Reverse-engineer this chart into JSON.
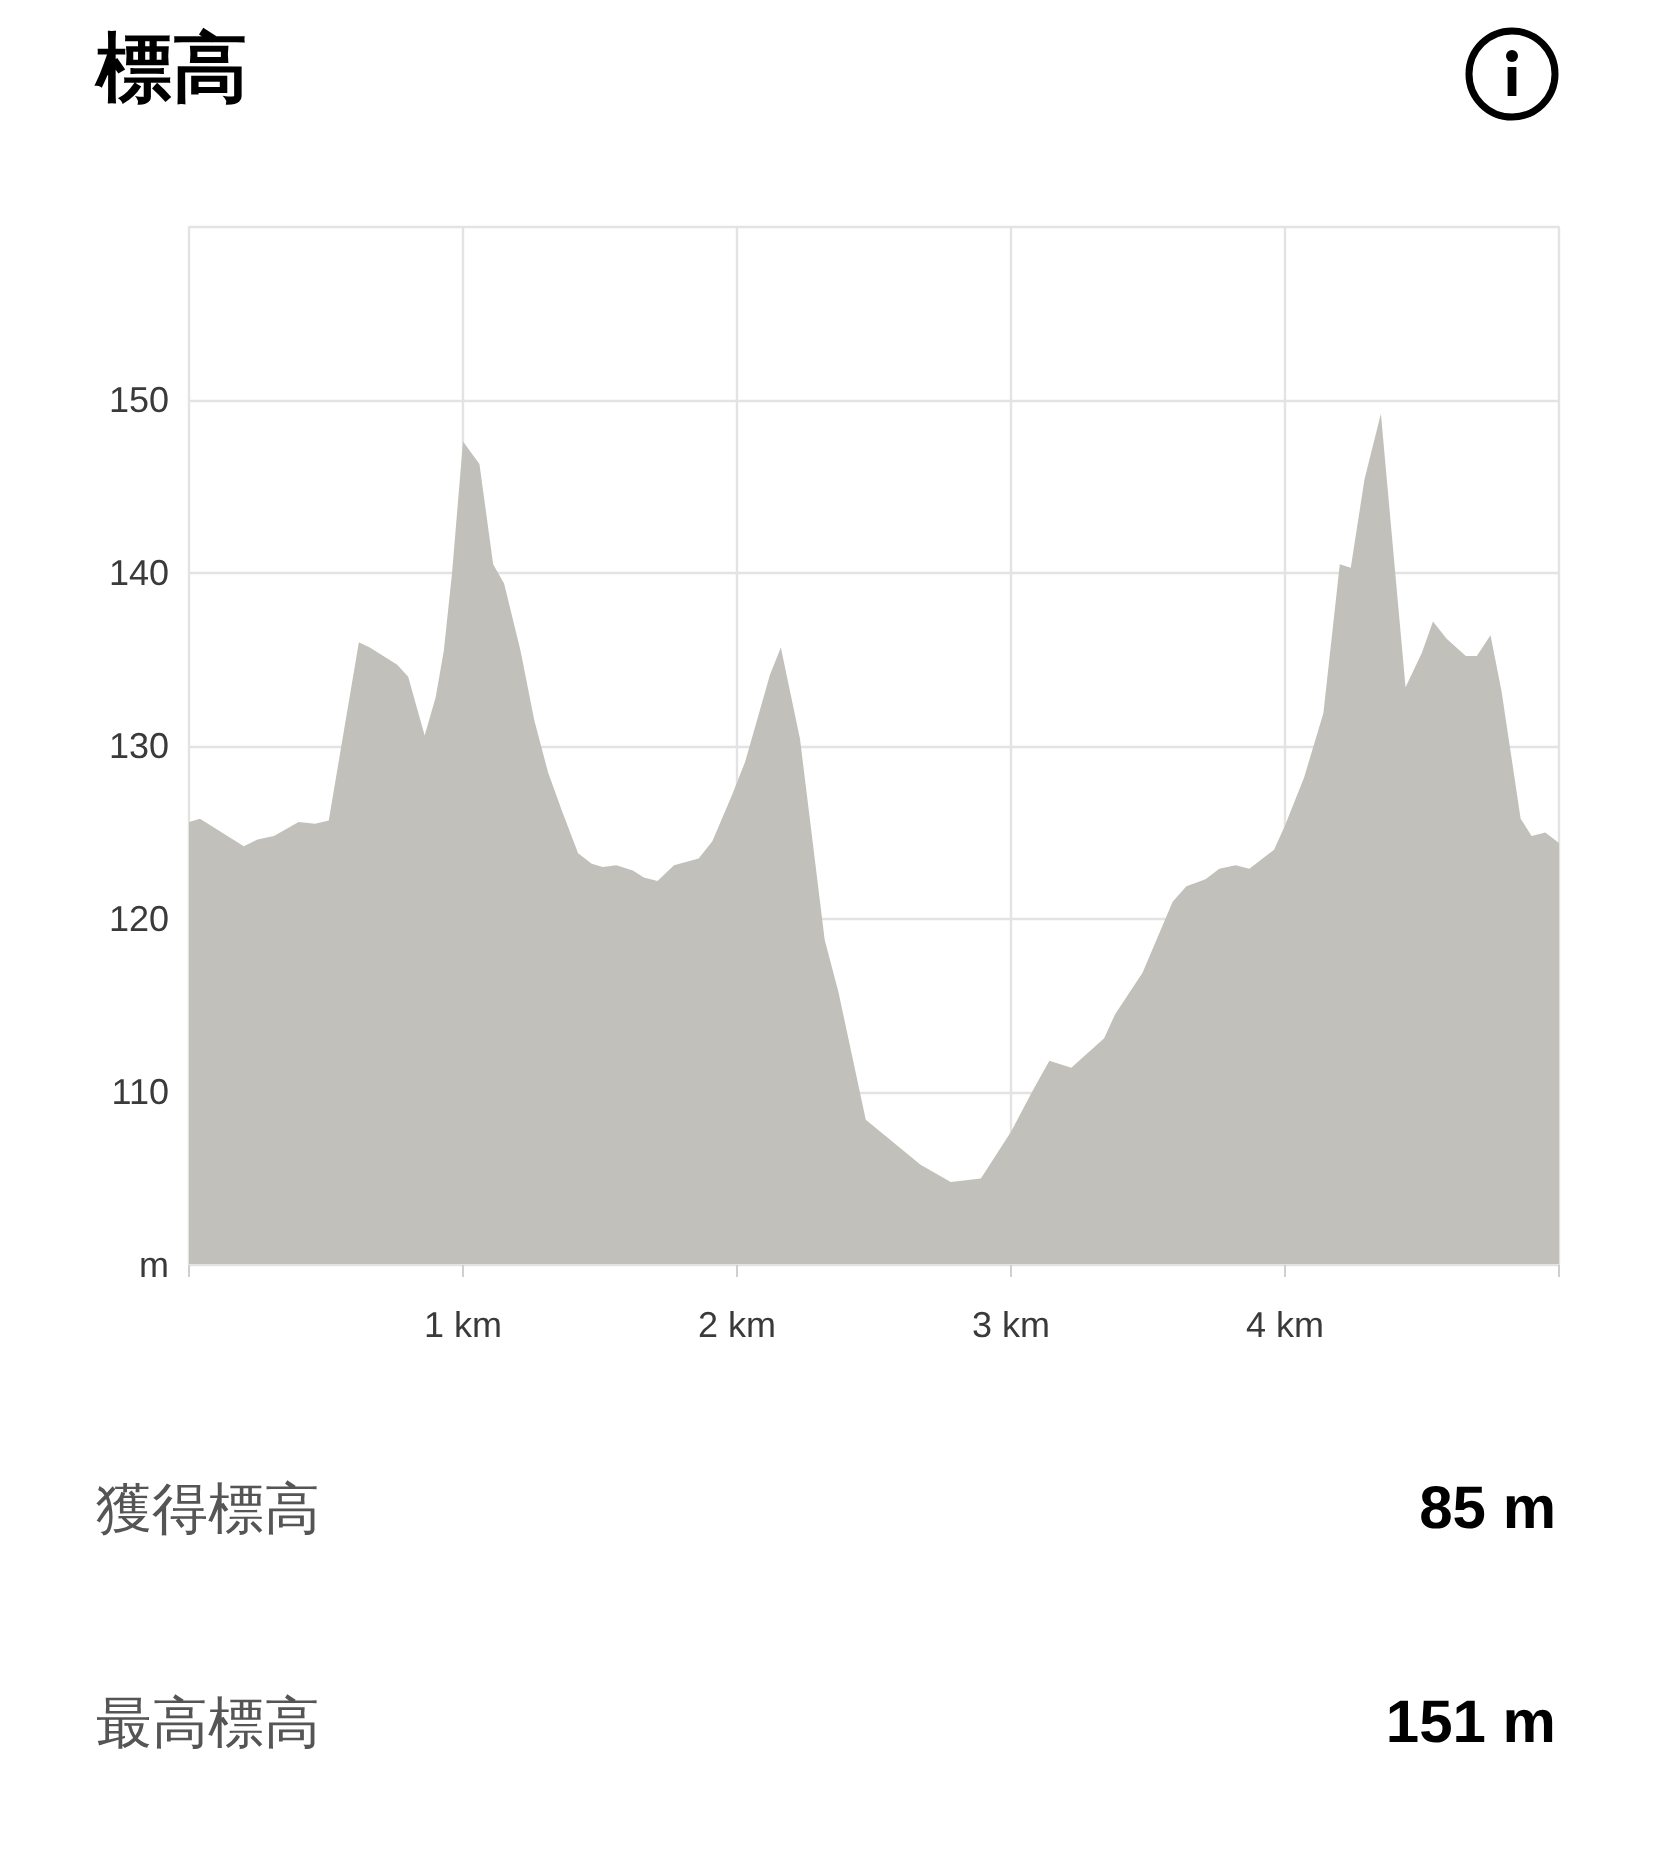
{
  "chart_data": {
    "type": "area",
    "title": "標高",
    "x": [
      0,
      0.04,
      0.2,
      0.25,
      0.31,
      0.4,
      0.46,
      0.51,
      0.62,
      0.66,
      0.76,
      0.8,
      0.86,
      0.9,
      0.93,
      0.96,
      1.0,
      1.06,
      1.11,
      1.15,
      1.21,
      1.26,
      1.31,
      1.36,
      1.42,
      1.47,
      1.51,
      1.56,
      1.62,
      1.66,
      1.71,
      1.77,
      1.86,
      1.91,
      1.98,
      2.03,
      2.12,
      2.16,
      2.23,
      2.32,
      2.37,
      2.47,
      2.57,
      2.67,
      2.78,
      2.89,
      3.0,
      3.08,
      3.14,
      3.22,
      3.34,
      3.38,
      3.48,
      3.59,
      3.64,
      3.71,
      3.76,
      3.82,
      3.87,
      3.96,
      4.0,
      4.07,
      4.14,
      4.2,
      4.24,
      4.29,
      4.35,
      4.44,
      4.5,
      4.54,
      4.59,
      4.66,
      4.7,
      4.75,
      4.79,
      4.86,
      4.9,
      4.95,
      5.0
    ],
    "values": [
      125.6,
      125.8,
      124.2,
      124.6,
      124.8,
      125.6,
      125.5,
      125.7,
      136.0,
      135.7,
      134.7,
      134.0,
      130.6,
      132.8,
      135.5,
      140.0,
      147.6,
      146.3,
      140.5,
      139.4,
      135.5,
      131.5,
      128.5,
      126.3,
      123.8,
      123.2,
      123.0,
      123.1,
      122.8,
      122.4,
      122.2,
      123.1,
      123.5,
      124.5,
      127.1,
      129.1,
      134.1,
      135.7,
      130.4,
      118.8,
      115.8,
      108.4,
      107.1,
      105.8,
      104.8,
      105.0,
      107.7,
      110.1,
      111.8,
      111.4,
      113.1,
      114.5,
      116.9,
      121.0,
      121.9,
      122.3,
      122.9,
      123.1,
      122.9,
      124.0,
      125.4,
      128.2,
      131.9,
      140.5,
      140.3,
      145.4,
      149.2,
      133.4,
      135.4,
      137.2,
      136.2,
      135.2,
      135.2,
      136.4,
      133.2,
      125.8,
      124.8,
      125.0,
      124.4
    ],
    "color": "#c1c0bb",
    "xlim": [
      0,
      5
    ],
    "xticks": [
      {
        "value": 0,
        "label": null
      },
      {
        "value": 1,
        "label": "1 km"
      },
      {
        "value": 2,
        "label": "2 km"
      },
      {
        "value": 3,
        "label": "3 km"
      },
      {
        "value": 4,
        "label": "4 km"
      },
      {
        "value": 5,
        "label": null
      }
    ],
    "ylim": [
      100,
      160
    ],
    "yticks": [
      {
        "value": 100,
        "label": "m"
      },
      110,
      120,
      130,
      140,
      150
    ],
    "grid": true,
    "annotations": [
      "獲得標高",
      "85 m",
      "最高標高",
      "151 m"
    ]
  }
}
